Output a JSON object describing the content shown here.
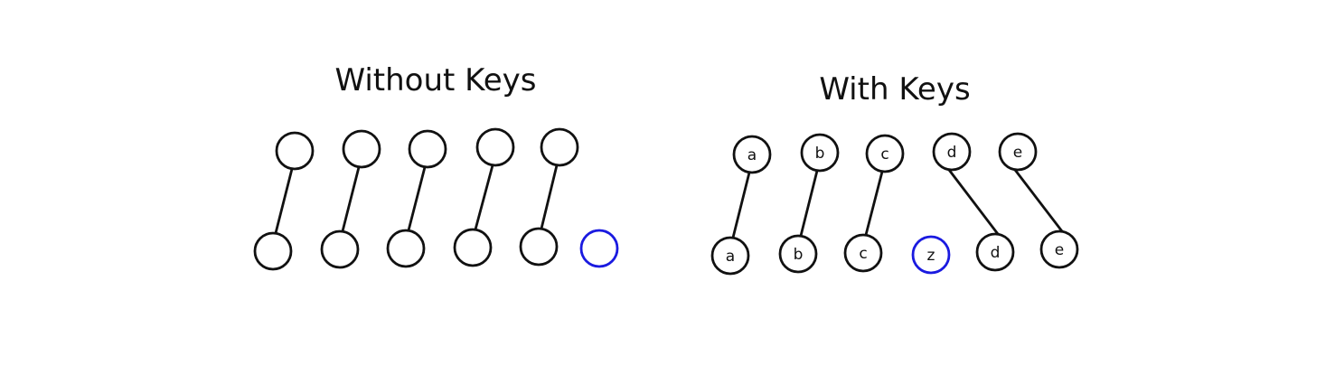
{
  "colors": {
    "stroke": "#111111",
    "new_node": "#1a1ae0",
    "background": "#ffffff"
  },
  "panels": [
    {
      "title": "Without Keys",
      "top_nodes": [
        "",
        "",
        "",
        "",
        ""
      ],
      "bottom_nodes": [
        "",
        "",
        "",
        "",
        "",
        ""
      ],
      "new_bottom_index": 5,
      "links": [
        [
          0,
          0
        ],
        [
          1,
          1
        ],
        [
          2,
          2
        ],
        [
          3,
          3
        ],
        [
          4,
          4
        ]
      ]
    },
    {
      "title": "With Keys",
      "top_nodes": [
        "a",
        "b",
        "c",
        "d",
        "e"
      ],
      "bottom_nodes": [
        "a",
        "b",
        "c",
        "z",
        "d",
        "e"
      ],
      "new_bottom_index": 3,
      "links": [
        [
          0,
          0
        ],
        [
          1,
          1
        ],
        [
          2,
          2
        ],
        [
          3,
          4
        ],
        [
          4,
          5
        ]
      ]
    }
  ]
}
